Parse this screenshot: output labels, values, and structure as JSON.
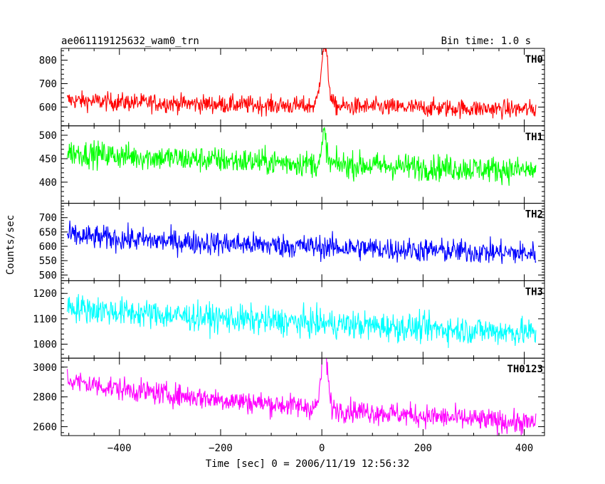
{
  "chart_data": {
    "type": "line",
    "title": "ae061119125632_wam0_trn",
    "bin_time_label": "Bin time: 1.0 s",
    "xlabel": "Time [sec] 0 = 2006/11/19 12:56:32",
    "ylabel": "Counts/sec",
    "xlim": [
      -515,
      440
    ],
    "x_ticks": [
      -400,
      -200,
      0,
      200,
      400
    ],
    "x_tick_labels": [
      "−400",
      "−200",
      "0",
      "200",
      "400"
    ],
    "time_range": [
      -503,
      423
    ],
    "grid": false,
    "panels": [
      {
        "name": "TH0",
        "color": "#ff0000",
        "ylim": [
          520,
          850
        ],
        "y_ticks": [
          600,
          700,
          800
        ],
        "y_tick_labels": [
          "600",
          "700",
          "800"
        ],
        "baseline_start": 630,
        "baseline_end": 590,
        "noise": 28,
        "spike": {
          "time": 5,
          "peak": 845,
          "width": 7
        }
      },
      {
        "name": "TH1",
        "color": "#00ff00",
        "ylim": [
          355,
          520
        ],
        "y_ticks": [
          400,
          450,
          500
        ],
        "y_tick_labels": [
          "400",
          "450",
          "500"
        ],
        "baseline_start": 465,
        "baseline_end": 425,
        "noise": 20,
        "spike": {
          "time": 5,
          "peak": 490,
          "width": 4
        }
      },
      {
        "name": "TH2",
        "color": "#0000ff",
        "ylim": [
          480,
          750
        ],
        "y_ticks": [
          500,
          550,
          600,
          650,
          700
        ],
        "y_tick_labels": [
          "500",
          "550",
          "600",
          "650",
          "700"
        ],
        "baseline_start": 640,
        "baseline_end": 575,
        "noise": 30,
        "spike": null
      },
      {
        "name": "TH3",
        "color": "#00ffff",
        "ylim": [
          945,
          1250
        ],
        "y_ticks": [
          1000,
          1100,
          1200
        ],
        "y_tick_labels": [
          "1000",
          "1100",
          "1200"
        ],
        "baseline_start": 1150,
        "baseline_end": 1045,
        "noise": 40,
        "spike": null
      },
      {
        "name": "TH0123",
        "color": "#ff00ff",
        "ylim": [
          2540,
          3060
        ],
        "y_ticks": [
          2600,
          2800,
          3000
        ],
        "y_tick_labels": [
          "2600",
          "2800",
          "3000"
        ],
        "baseline_start": 2920,
        "baseline_end": 2620,
        "noise": 55,
        "spike": {
          "time": 5,
          "peak": 3040,
          "width": 6
        }
      }
    ]
  }
}
